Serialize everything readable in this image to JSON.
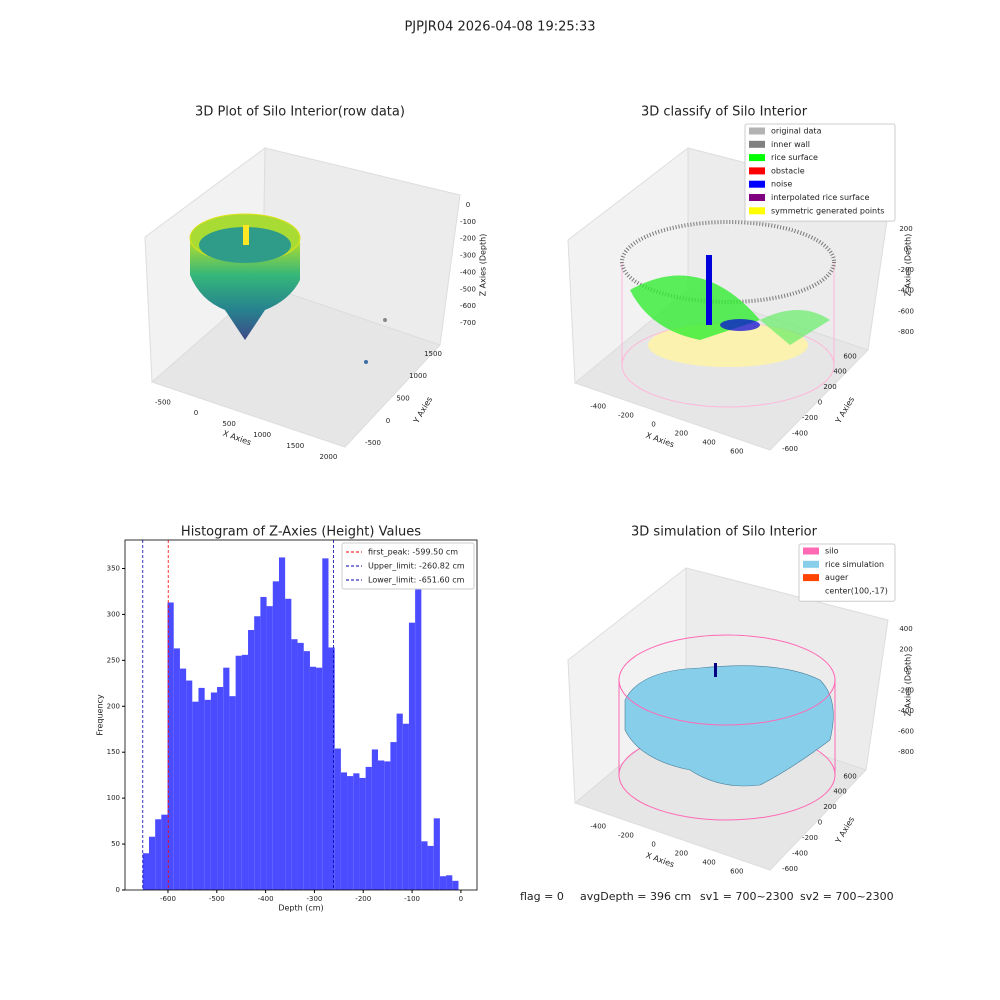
{
  "title": "PJPJR04 2026-04-08 19:25:33",
  "chart_data": [
    {
      "type": "scatter3d",
      "title": "3D Plot of Silo Interior(row data)",
      "xlabel": "X Axies",
      "ylabel": "Y Axies",
      "zlabel": "Z Axies (Depth)",
      "xlim": [
        -650,
        2100
      ],
      "ylim": [
        -700,
        1700
      ],
      "zlim": [
        -780,
        50
      ],
      "xticks": [
        -500,
        0,
        500,
        1000,
        1500,
        2000
      ],
      "yticks": [
        -500,
        0,
        500,
        1000,
        1500
      ],
      "zticks": [
        0,
        -100,
        -200,
        -300,
        -400,
        -500,
        -600,
        -700
      ]
    },
    {
      "type": "scatter3d",
      "title": "3D classify of Silo Interior",
      "xlabel": "X Axies",
      "ylabel": "Y Axies",
      "zlabel": "Z Axies (Depth)",
      "xlim": [
        -560,
        760
      ],
      "ylim": [
        -720,
        720
      ],
      "zlim": [
        -880,
        250
      ],
      "xticks": [
        -400,
        -200,
        0,
        200,
        400,
        600
      ],
      "yticks": [
        -600,
        -400,
        -200,
        0,
        200,
        400,
        600
      ],
      "zticks": [
        200,
        0,
        -200,
        -400,
        -600,
        -800
      ],
      "legend": [
        {
          "name": "original data",
          "color": "#b3b3b3"
        },
        {
          "name": "inner wall",
          "color": "#808080"
        },
        {
          "name": "rice surface",
          "color": "#00ff00"
        },
        {
          "name": "obstacle",
          "color": "#ff0000"
        },
        {
          "name": "noise",
          "color": "#0000ff"
        },
        {
          "name": "interpolated rice surface",
          "color": "#800080"
        },
        {
          "name": "symmetric generated points",
          "color": "#ffff00"
        }
      ]
    },
    {
      "type": "histogram",
      "title": "Histogram of Z-Axies (Height) Values",
      "xlabel": "Depth (cm)",
      "ylabel": "Frequency",
      "color": "#4b4bff",
      "xlim": [
        -688,
        33
      ],
      "ylim": [
        0,
        381
      ],
      "xticks": [
        -600,
        -500,
        -400,
        -300,
        -200,
        -100,
        0
      ],
      "yticks": [
        0,
        50,
        100,
        150,
        200,
        250,
        300,
        350
      ],
      "bins": [
        -651.6,
        -638.9,
        -626.2,
        -613.6,
        -600.9,
        -588.2,
        -575.5,
        -562.8,
        -550.2,
        -537.5,
        -524.8,
        -512.1,
        -499.4,
        -486.8,
        -474.1,
        -461.4,
        -448.7,
        -436.0,
        -423.4,
        -410.7,
        -398.0,
        -385.3,
        -372.6,
        -360.0,
        -347.3,
        -334.6,
        -321.9,
        -309.2,
        -296.6,
        -283.9,
        -271.2,
        -258.5,
        -245.8,
        -233.2,
        -220.5,
        -207.8,
        -195.1,
        -182.4,
        -169.8,
        -157.1,
        -144.4,
        -131.7,
        -119.0,
        -106.4,
        -93.7,
        -81.0,
        -68.3,
        -55.6,
        -43.0,
        -30.3,
        -17.6,
        -4.9
      ],
      "values": [
        40,
        58,
        77,
        82,
        313,
        263,
        241,
        228,
        205,
        220,
        207,
        215,
        221,
        242,
        211,
        255,
        256,
        283,
        298,
        319,
        309,
        336,
        362,
        317,
        273,
        269,
        260,
        243,
        242,
        361,
        264,
        154,
        128,
        124,
        127,
        122,
        134,
        153,
        141,
        140,
        161,
        192,
        181,
        291,
        338,
        53,
        48,
        78,
        15,
        16,
        10
      ],
      "lines": [
        {
          "name": "first_peak: -599.50 cm",
          "value": -599.5,
          "color": "#ff0000"
        },
        {
          "name": "Upper_limit: -260.82 cm",
          "value": -260.82,
          "color": "#0000aa"
        },
        {
          "name": "Lower_limit: -651.60 cm",
          "value": -651.6,
          "color": "#0000aa"
        }
      ]
    },
    {
      "type": "surface3d",
      "title": "3D simulation of Silo Interior",
      "xlabel": "X Axies",
      "ylabel": "Y Axies",
      "zlabel": "Z Axies (Depth)",
      "xlim": [
        -560,
        760
      ],
      "ylim": [
        -720,
        720
      ],
      "zlim": [
        -880,
        480
      ],
      "xticks": [
        -400,
        -200,
        0,
        200,
        400,
        600
      ],
      "yticks": [
        -600,
        -400,
        -200,
        0,
        200,
        400,
        600
      ],
      "zticks": [
        400,
        200,
        0,
        -200,
        -400,
        -600,
        -800
      ],
      "legend": [
        {
          "name": "silo",
          "color": "#ff69b4"
        },
        {
          "name": "rice simulation",
          "color": "#87ceeb"
        },
        {
          "name": "auger",
          "color": "#ff4500"
        },
        {
          "name": "center(100,-17)"
        }
      ]
    }
  ],
  "footer": [
    "flag = 0",
    "avgDepth = 396 cm",
    "sv1 = 700~2300",
    "sv2 = 700~2300"
  ]
}
